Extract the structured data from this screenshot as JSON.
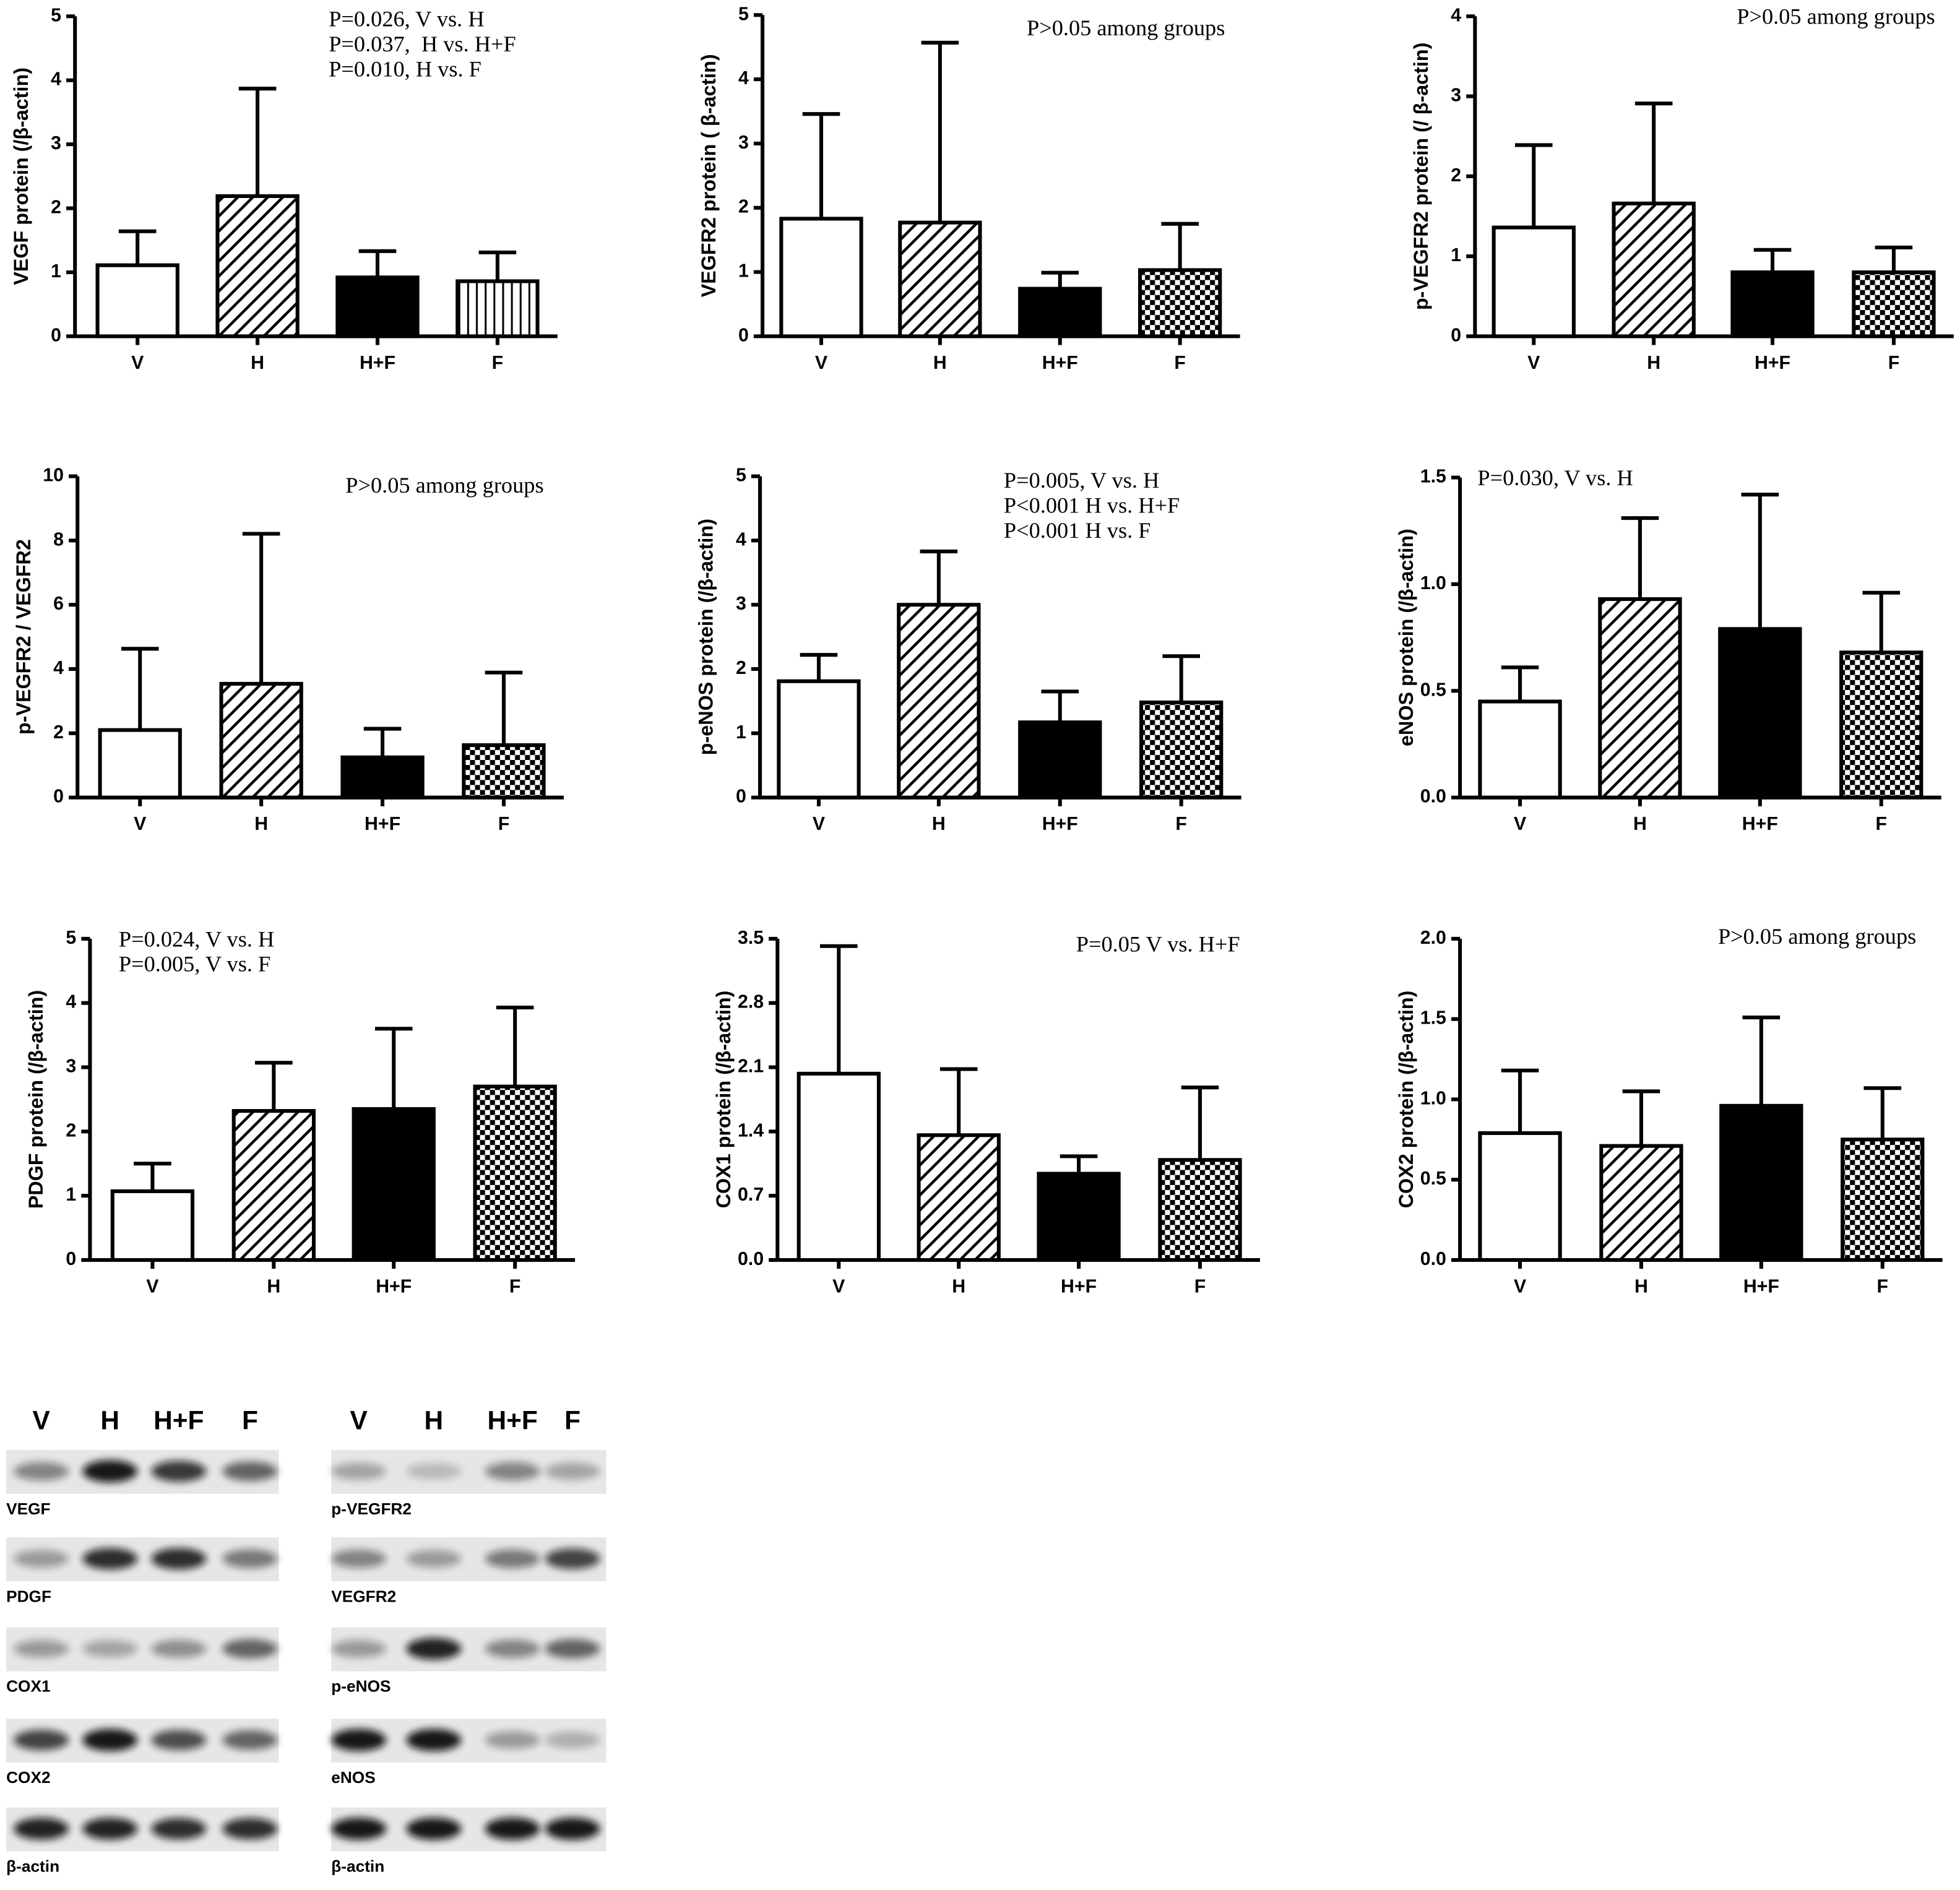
{
  "chart_data": [
    {
      "type": "bar",
      "ylabel": "VEGF protein (/β-actin)",
      "categories": [
        "V",
        "H",
        "H+F",
        "F"
      ],
      "values": [
        1.11,
        2.19,
        0.92,
        0.86
      ],
      "errors": [
        0.53,
        1.68,
        0.41,
        0.45
      ],
      "patterns": [
        "none",
        "hatch",
        "solid",
        "vertical"
      ],
      "color": "#000000",
      "ylim": [
        0,
        5
      ],
      "yticks": [
        0,
        1,
        2,
        3,
        4,
        5
      ],
      "annotations": [
        "P=0.026, V vs. H",
        "P=0.037,  H vs. H+F",
        "P=0.010, H vs. F"
      ]
    },
    {
      "type": "bar",
      "ylabel": "VEGFR2 protein ( β-actin)",
      "categories": [
        "V",
        "H",
        "H+F",
        "F"
      ],
      "values": [
        1.83,
        1.77,
        0.74,
        1.03
      ],
      "errors": [
        1.63,
        2.8,
        0.25,
        0.72
      ],
      "patterns": [
        "none",
        "hatch",
        "solid",
        "checker"
      ],
      "color": "#000000",
      "ylim": [
        0,
        5
      ],
      "yticks": [
        0,
        1,
        2,
        3,
        4,
        5
      ],
      "annotations": [
        "P>0.05 among groups"
      ]
    },
    {
      "type": "bar",
      "ylabel": "p-VEGFR2 protein (/ β-actin)",
      "categories": [
        "V",
        "H",
        "H+F",
        "F"
      ],
      "values": [
        1.36,
        1.66,
        0.8,
        0.8
      ],
      "errors": [
        1.03,
        1.25,
        0.28,
        0.31
      ],
      "patterns": [
        "none",
        "hatch",
        "solid",
        "checker"
      ],
      "color": "#000000",
      "ylim": [
        0,
        4
      ],
      "yticks": [
        0,
        1,
        2,
        3,
        4
      ],
      "annotations": [
        "P>0.05 among groups"
      ]
    },
    {
      "type": "bar",
      "ylabel": "p-VEGFR2 / VEGFR2",
      "categories": [
        "V",
        "H",
        "H+F",
        "F"
      ],
      "values": [
        2.1,
        3.54,
        1.25,
        1.63
      ],
      "errors": [
        2.53,
        4.67,
        0.89,
        2.26
      ],
      "patterns": [
        "none",
        "hatch",
        "solid",
        "checker"
      ],
      "color": "#000000",
      "ylim": [
        0,
        10
      ],
      "yticks": [
        0,
        2,
        4,
        6,
        8,
        10
      ],
      "annotations": [
        "P>0.05 among groups"
      ]
    },
    {
      "type": "bar",
      "ylabel": "p-eNOS protein (/β-actin)",
      "categories": [
        "V",
        "H",
        "H+F",
        "F"
      ],
      "values": [
        1.81,
        3.0,
        1.17,
        1.48
      ],
      "errors": [
        0.41,
        0.83,
        0.48,
        0.72
      ],
      "patterns": [
        "none",
        "hatch",
        "solid",
        "checker"
      ],
      "color": "#000000",
      "ylim": [
        0,
        5
      ],
      "yticks": [
        0,
        1,
        2,
        3,
        4,
        5
      ],
      "annotations": [
        "P=0.005, V vs. H",
        "P<0.001 H vs. H+F",
        "P<0.001 H vs. F"
      ]
    },
    {
      "type": "bar",
      "ylabel": "eNOS protein (/β-actin)",
      "categories": [
        "V",
        "H",
        "H+F",
        "F"
      ],
      "values": [
        0.45,
        0.93,
        0.79,
        0.68
      ],
      "errors": [
        0.16,
        0.38,
        0.63,
        0.28
      ],
      "patterns": [
        "none",
        "hatch",
        "solid",
        "checker"
      ],
      "color": "#000000",
      "ylim": [
        0,
        1.5
      ],
      "yticks": [
        {
          "value": 0,
          "label": "0.0"
        },
        0.5,
        {
          "value": 1,
          "label": "1.0"
        },
        1.5
      ],
      "annotations": [
        "P=0.030, V vs. H"
      ]
    },
    {
      "type": "bar",
      "ylabel": "PDGF protein (/β-actin)",
      "categories": [
        "V",
        "H",
        "H+F",
        "F"
      ],
      "values": [
        1.07,
        2.32,
        2.35,
        2.7
      ],
      "errors": [
        0.43,
        0.75,
        1.25,
        1.23
      ],
      "patterns": [
        "none",
        "hatch",
        "solid",
        "checker"
      ],
      "color": "#000000",
      "ylim": [
        0,
        5
      ],
      "yticks": [
        0,
        1,
        2,
        3,
        4,
        5
      ],
      "annotations": [
        "P=0.024, V vs. H",
        "P=0.005, V vs. F"
      ]
    },
    {
      "type": "bar",
      "ylabel": "COX1 protein (/β-actin)",
      "categories": [
        "V",
        "H",
        "H+F",
        "F"
      ],
      "values": [
        2.03,
        1.36,
        0.94,
        1.09
      ],
      "errors": [
        1.39,
        0.72,
        0.19,
        0.79
      ],
      "patterns": [
        "none",
        "hatch",
        "solid",
        "checker"
      ],
      "color": "#000000",
      "ylim": [
        0,
        3.5
      ],
      "yticks": [
        {
          "value": 0,
          "label": "0.0"
        },
        0.7,
        1.4,
        2.1,
        2.8,
        3.5
      ],
      "annotations": [
        "P=0.05 V vs. H+F"
      ]
    },
    {
      "type": "bar",
      "ylabel": "COX2 protein (/β-actin)",
      "categories": [
        "V",
        "H",
        "H+F",
        "F"
      ],
      "values": [
        0.79,
        0.71,
        0.96,
        0.75
      ],
      "errors": [
        0.39,
        0.34,
        0.55,
        0.32
      ],
      "patterns": [
        "none",
        "hatch",
        "solid",
        "checker"
      ],
      "color": "#000000",
      "ylim": [
        0,
        2
      ],
      "yticks": [
        {
          "value": 0,
          "label": "0.0"
        },
        0.5,
        {
          "value": 1,
          "label": "1.0"
        },
        1.5,
        {
          "value": 2,
          "label": "2.0"
        }
      ],
      "annotations": [
        "P>0.05 among groups"
      ]
    }
  ],
  "blots": {
    "lanes_left": [
      "V",
      "H",
      "H+F",
      "F"
    ],
    "lanes_right": [
      "V",
      "H",
      "H+F",
      "F"
    ],
    "labels_left": [
      "VEGF",
      "PDGF",
      "COX1",
      "COX2",
      "β-actin"
    ],
    "labels_right": [
      "p-VEGFR2",
      "VEGFR2",
      "p-eNOS",
      "eNOS",
      "β-actin"
    ]
  }
}
